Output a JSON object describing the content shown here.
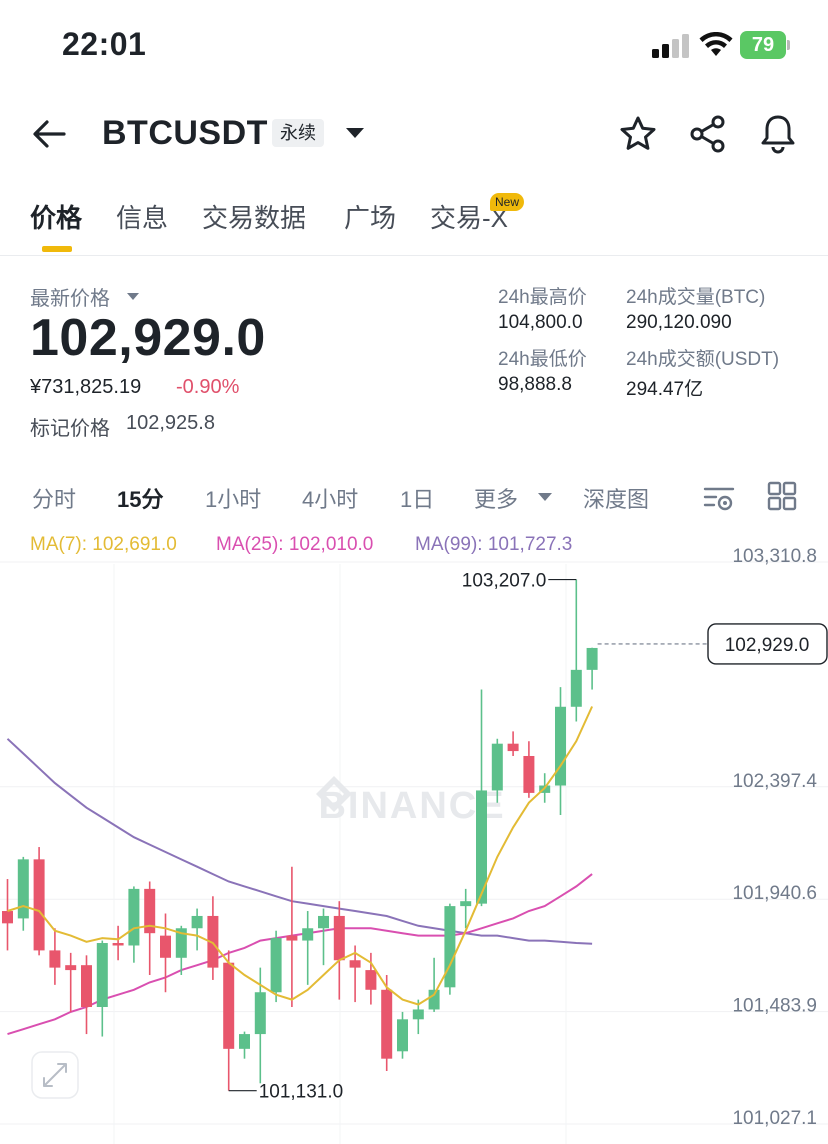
{
  "status_bar": {
    "time": "22:01",
    "battery": "79"
  },
  "header": {
    "pair": "BTCUSDT",
    "contract_type": "永续"
  },
  "tabs": [
    {
      "label": "价格",
      "active": true
    },
    {
      "label": "信息"
    },
    {
      "label": "交易数据"
    },
    {
      "label": "广场"
    },
    {
      "label": "交易-X",
      "badge": "New"
    }
  ],
  "price": {
    "latest_label": "最新价格",
    "last": "102,929.0",
    "cny": "¥731,825.19",
    "change": "-0.90%",
    "mark_label": "标记价格",
    "mark": "102,925.8"
  },
  "stats": {
    "high_label": "24h最高价",
    "high": "104,800.0",
    "low_label": "24h最低价",
    "low": "98,888.8",
    "vol_btc_label": "24h成交量(BTC)",
    "vol_btc": "290,120.090",
    "vol_usdt_label": "24h成交额(USDT)",
    "vol_usdt": "294.47亿"
  },
  "intervals": [
    {
      "label": "分时"
    },
    {
      "label": "15分",
      "active": true
    },
    {
      "label": "1小时"
    },
    {
      "label": "4小时"
    },
    {
      "label": "1日"
    },
    {
      "label": "更多"
    },
    {
      "label": "深度图"
    }
  ],
  "ma_legend": {
    "ma7": "MA(7): 102,691.0",
    "ma25": "MA(25): 102,010.0",
    "ma99": "MA(99): 101,727.3"
  },
  "colors": {
    "up": "#5cc08b",
    "down": "#e8566c",
    "ma7": "#e3bb35",
    "ma25": "#d94fb0",
    "ma99": "#8a73b8",
    "accent": "#f0b90b"
  },
  "watermark": "BINANCE",
  "chart_data": {
    "type": "candlestick",
    "interval": "15分",
    "y_axis_ticks": [
      "103,310.8",
      "102,397.4",
      "101,940.6",
      "101,483.9",
      "101,027.1"
    ],
    "y_axis_values": [
      103310.8,
      102397.4,
      101940.6,
      101483.9,
      101027.1
    ],
    "current_price_label": "102,929.0",
    "current_price": 102929.0,
    "high_annotation": "103,207.0",
    "low_annotation": "101,131.0",
    "candles": [
      {
        "open": 101860,
        "high": 101990,
        "low": 101700,
        "close": 101810
      },
      {
        "open": 101830,
        "high": 102080,
        "low": 101780,
        "close": 102070
      },
      {
        "open": 102070,
        "high": 102120,
        "low": 101680,
        "close": 101700
      },
      {
        "open": 101700,
        "high": 101790,
        "low": 101560,
        "close": 101630
      },
      {
        "open": 101640,
        "high": 101690,
        "low": 101450,
        "close": 101620
      },
      {
        "open": 101640,
        "high": 101680,
        "low": 101360,
        "close": 101470
      },
      {
        "open": 101470,
        "high": 101740,
        "low": 101350,
        "close": 101730
      },
      {
        "open": 101730,
        "high": 101800,
        "low": 101660,
        "close": 101720
      },
      {
        "open": 101720,
        "high": 101960,
        "low": 101650,
        "close": 101950
      },
      {
        "open": 101950,
        "high": 101980,
        "low": 101600,
        "close": 101770
      },
      {
        "open": 101760,
        "high": 101850,
        "low": 101530,
        "close": 101670
      },
      {
        "open": 101670,
        "high": 101800,
        "low": 101600,
        "close": 101790
      },
      {
        "open": 101790,
        "high": 101870,
        "low": 101700,
        "close": 101840
      },
      {
        "open": 101840,
        "high": 101920,
        "low": 101580,
        "close": 101630
      },
      {
        "open": 101650,
        "high": 101700,
        "low": 101130,
        "close": 101300
      },
      {
        "open": 101300,
        "high": 101370,
        "low": 101260,
        "close": 101360
      },
      {
        "open": 101360,
        "high": 101630,
        "low": 101160,
        "close": 101530
      },
      {
        "open": 101530,
        "high": 101780,
        "low": 101490,
        "close": 101750
      },
      {
        "open": 101760,
        "high": 102040,
        "low": 101470,
        "close": 101740
      },
      {
        "open": 101740,
        "high": 101860,
        "low": 101560,
        "close": 101790
      },
      {
        "open": 101790,
        "high": 101870,
        "low": 101640,
        "close": 101840
      },
      {
        "open": 101840,
        "high": 101900,
        "low": 101500,
        "close": 101660
      },
      {
        "open": 101660,
        "high": 101720,
        "low": 101490,
        "close": 101630
      },
      {
        "open": 101620,
        "high": 101690,
        "low": 101480,
        "close": 101540
      },
      {
        "open": 101540,
        "high": 101600,
        "low": 101210,
        "close": 101260
      },
      {
        "open": 101290,
        "high": 101450,
        "low": 101260,
        "close": 101420
      },
      {
        "open": 101420,
        "high": 101500,
        "low": 101360,
        "close": 101460
      },
      {
        "open": 101460,
        "high": 101670,
        "low": 101450,
        "close": 101540
      },
      {
        "open": 101550,
        "high": 101890,
        "low": 101520,
        "close": 101880
      },
      {
        "open": 101880,
        "high": 101950,
        "low": 101790,
        "close": 101900
      },
      {
        "open": 101890,
        "high": 102760,
        "low": 101880,
        "close": 102350
      },
      {
        "open": 102350,
        "high": 102560,
        "low": 102300,
        "close": 102540
      },
      {
        "open": 102540,
        "high": 102590,
        "low": 102490,
        "close": 102510
      },
      {
        "open": 102490,
        "high": 102550,
        "low": 102320,
        "close": 102340
      },
      {
        "open": 102340,
        "high": 102420,
        "low": 102300,
        "close": 102370
      },
      {
        "open": 102370,
        "high": 102770,
        "low": 102250,
        "close": 102690
      },
      {
        "open": 102690,
        "high": 103207,
        "low": 102630,
        "close": 102840
      },
      {
        "open": 102840,
        "high": 102930,
        "low": 102760,
        "close": 102929
      }
    ],
    "ma7": [
      101860,
      101880,
      101860,
      101780,
      101760,
      101735,
      101750,
      101745,
      101790,
      101800,
      101790,
      101770,
      101760,
      101730,
      101650,
      101600,
      101560,
      101520,
      101500,
      101540,
      101600,
      101660,
      101690,
      101650,
      101550,
      101500,
      101480,
      101520,
      101640,
      101780,
      101930,
      102080,
      102200,
      102300,
      102360,
      102450,
      102550,
      102691
    ],
    "ma25": [
      101360,
      101380,
      101400,
      101420,
      101450,
      101470,
      101500,
      101520,
      101540,
      101570,
      101590,
      101620,
      101640,
      101660,
      101690,
      101710,
      101740,
      101750,
      101760,
      101770,
      101780,
      101790,
      101790,
      101790,
      101780,
      101770,
      101760,
      101760,
      101760,
      101770,
      101790,
      101810,
      101830,
      101860,
      101880,
      101920,
      101960,
      102010
    ],
    "ma99": [
      102560,
      102500,
      102440,
      102380,
      102330,
      102280,
      102240,
      102200,
      102160,
      102130,
      102100,
      102070,
      102040,
      102010,
      101980,
      101960,
      101940,
      101920,
      101900,
      101890,
      101880,
      101870,
      101860,
      101850,
      101840,
      101820,
      101800,
      101790,
      101780,
      101770,
      101760,
      101760,
      101750,
      101740,
      101740,
      101735,
      101730,
      101727.3
    ]
  }
}
